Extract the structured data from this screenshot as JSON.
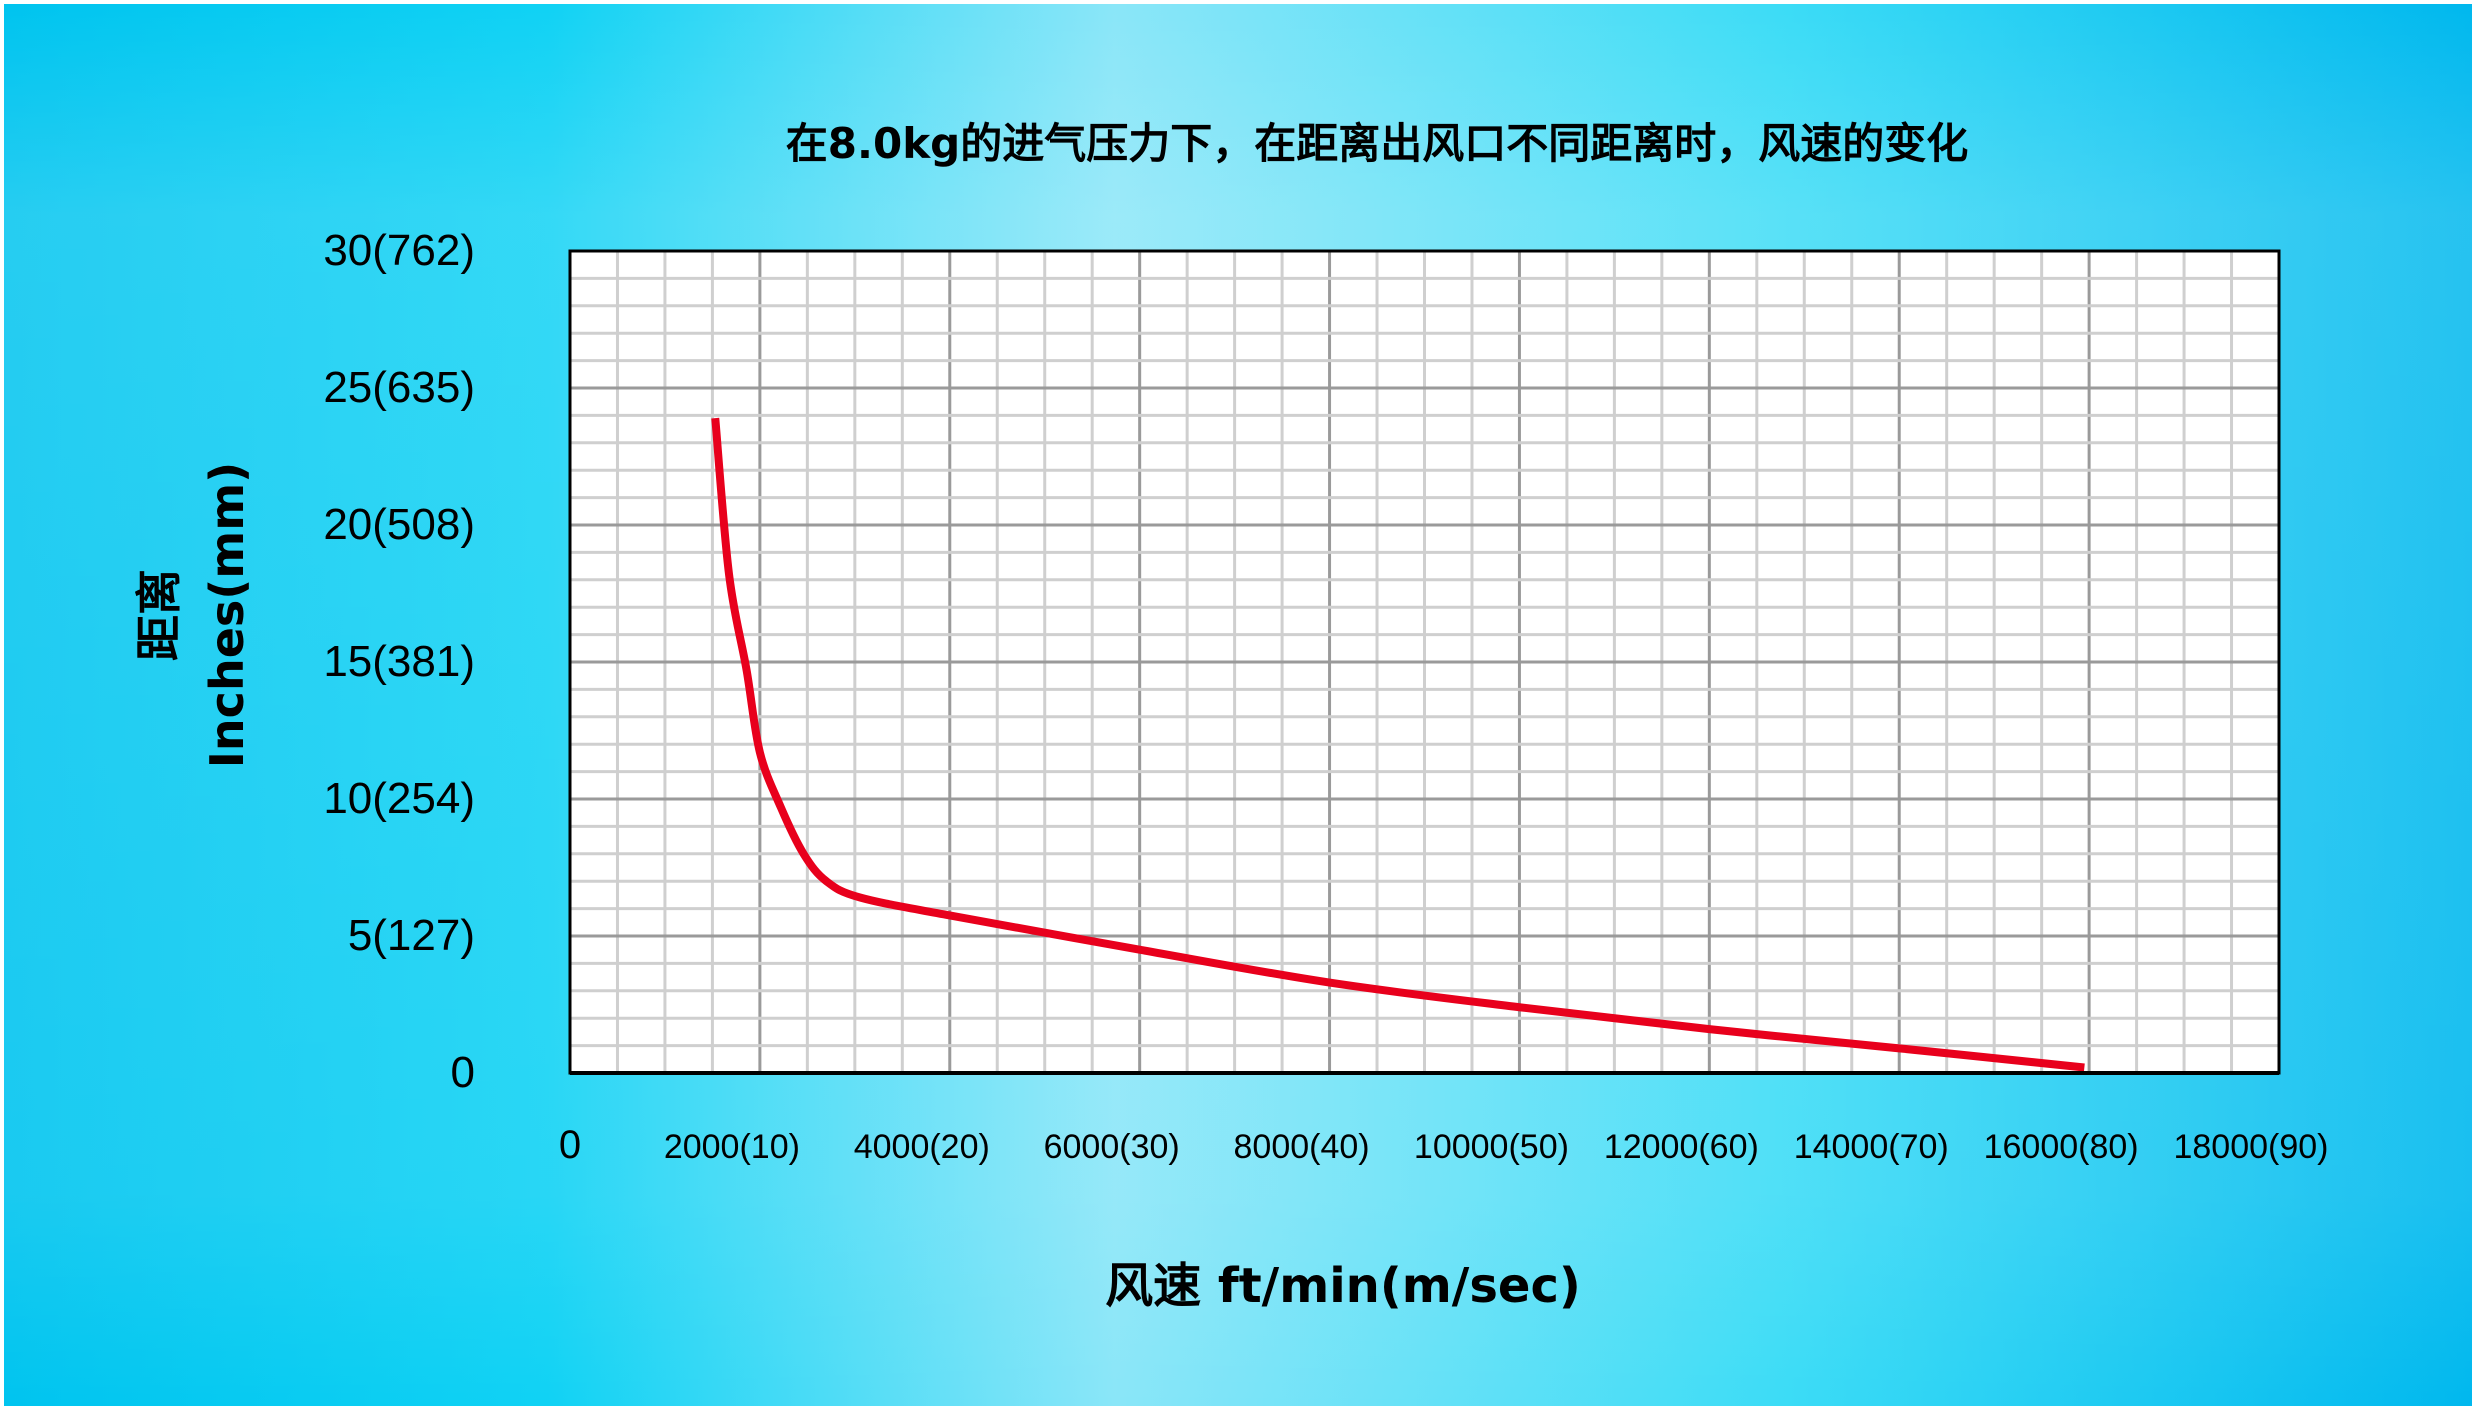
{
  "chart_data": {
    "type": "line",
    "title": "在8.0kg的进气压力下，在距离出风口不同距离时，风速的变化",
    "xlabel": "风速 ft/min(m/sec)",
    "ylabel_line1": "距离",
    "ylabel_line2": "Inches(mm)",
    "xlim": [
      0,
      18000
    ],
    "ylim": [
      0,
      30
    ],
    "grid": true,
    "x_major_step": 2000,
    "x_minor_step": 500,
    "y_major_step": 5,
    "y_minor_step": 1,
    "x_tick_values": [
      0,
      2000,
      4000,
      6000,
      8000,
      10000,
      12000,
      14000,
      16000,
      18000
    ],
    "x_tick_labels": [
      "0",
      "2000(10)",
      "4000(20)",
      "6000(30)",
      "8000(40)",
      "10000(50)",
      "12000(60)",
      "14000(70)",
      "16000(80)",
      "18000(90)"
    ],
    "y_tick_values": [
      0,
      5,
      10,
      15,
      20,
      25,
      30
    ],
    "y_tick_labels": [
      "0",
      "5(127)",
      "10(254)",
      "15(381)",
      "20(508)",
      "25(635)",
      "30(762)"
    ],
    "series": [
      {
        "color": "#e8001c",
        "x": [
          1530,
          1675,
          1860,
          2000,
          2220,
          2460,
          2700,
          3060,
          4000,
          6000,
          8000,
          10000,
          12000,
          14000,
          15950
        ],
        "y": [
          23.9,
          18.2,
          14.7,
          11.7,
          9.7,
          8.0,
          7.0,
          6.4,
          5.75,
          4.5,
          3.3,
          2.4,
          1.6,
          0.9,
          0.2
        ]
      }
    ]
  },
  "colors": {
    "background_edge": "#00c4ef",
    "background_center": "#8ae6f8",
    "curve": "#e8001c",
    "grid_major": "#9a9a9a",
    "grid_minor": "#cfcfcf"
  }
}
